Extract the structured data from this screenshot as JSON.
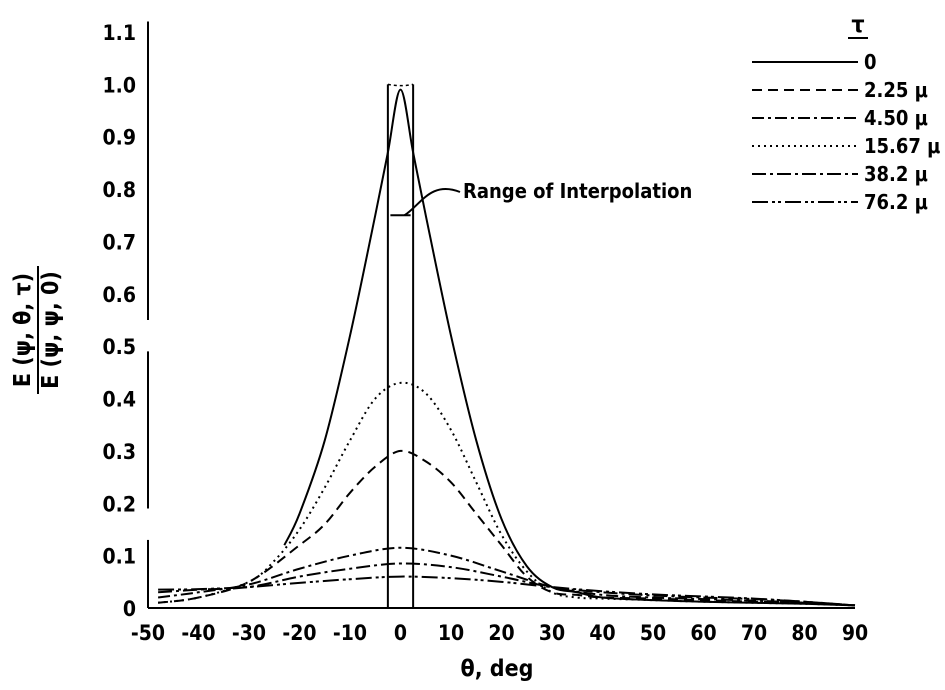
{
  "chart_data": {
    "type": "line",
    "xlabel": "θ, deg",
    "ylabel_numerator": "E (ψ,  θ,  τ)",
    "ylabel_denominator": "E (ψ,  ψ,  0)",
    "xlim": [
      -50,
      90
    ],
    "ylim": [
      0,
      1.1
    ],
    "x_ticks": [
      "-50",
      "-40",
      "-30",
      "-20",
      "-10",
      "0",
      "10",
      "20",
      "30",
      "40",
      "50",
      "60",
      "70",
      "80",
      "90"
    ],
    "y_ticks": [
      "0",
      "0.1",
      "0.2",
      "0.3",
      "0.4",
      "0.5",
      "0.6",
      "0.7",
      "0.8",
      "0.9",
      "1.0",
      "1.1"
    ],
    "legend_title": "τ",
    "legend_position": "top-right",
    "annotation": {
      "text": "Range of Interpolation",
      "x": 0,
      "y": 0.75
    },
    "interpolation_range": [
      -2.5,
      2.5
    ],
    "series": [
      {
        "name": "0",
        "dash": "",
        "x": [
          -23,
          -20,
          -15,
          -10,
          -5,
          -2.5,
          0,
          2.5,
          5,
          10,
          15,
          20,
          25,
          30,
          35,
          40,
          50,
          60,
          70,
          80,
          90
        ],
        "y": [
          0.12,
          0.18,
          0.32,
          0.52,
          0.75,
          0.87,
          0.99,
          0.87,
          0.75,
          0.52,
          0.32,
          0.17,
          0.08,
          0.04,
          0.03,
          0.02,
          0.015,
          0.012,
          0.01,
          0.008,
          0.005
        ]
      },
      {
        "name": "2.25 μ",
        "dash": "10 6",
        "x": [
          -48,
          -40,
          -30,
          -20,
          -15,
          -10,
          -5,
          0,
          5,
          10,
          15,
          20,
          25,
          30,
          35,
          40,
          50,
          60,
          70,
          80,
          90
        ],
        "y": [
          0.01,
          0.02,
          0.05,
          0.12,
          0.16,
          0.22,
          0.27,
          0.3,
          0.28,
          0.24,
          0.18,
          0.12,
          0.06,
          0.03,
          0.025,
          0.02,
          0.018,
          0.015,
          0.012,
          0.01,
          0.005
        ]
      },
      {
        "name": "4.50 μ",
        "dash": "12 4 3 4",
        "x": [
          -48,
          -40,
          -30,
          -20,
          -10,
          0,
          10,
          20,
          30,
          40,
          50,
          60,
          70,
          80,
          90
        ],
        "y": [
          0.02,
          0.03,
          0.045,
          0.075,
          0.1,
          0.115,
          0.1,
          0.07,
          0.04,
          0.025,
          0.02,
          0.017,
          0.014,
          0.01,
          0.005
        ]
      },
      {
        "name": "15.67 μ",
        "dash": "2 4",
        "x": [
          -48,
          -40,
          -30,
          -25,
          -20,
          -15,
          -10,
          -5,
          0,
          5,
          10,
          15,
          20,
          25,
          30,
          35,
          40,
          50,
          60,
          70,
          80,
          90
        ],
        "y": [
          0.01,
          0.02,
          0.05,
          0.09,
          0.15,
          0.23,
          0.32,
          0.4,
          0.43,
          0.41,
          0.34,
          0.24,
          0.14,
          0.07,
          0.03,
          0.02,
          0.018,
          0.015,
          0.012,
          0.01,
          0.008,
          0.005
        ]
      },
      {
        "name": "38.2 μ",
        "dash": "14 4 3 4",
        "x": [
          -48,
          -40,
          -30,
          -20,
          -10,
          0,
          10,
          20,
          30,
          40,
          50,
          60,
          70,
          80,
          90
        ],
        "y": [
          0.03,
          0.035,
          0.04,
          0.06,
          0.075,
          0.085,
          0.078,
          0.06,
          0.04,
          0.03,
          0.024,
          0.02,
          0.017,
          0.012,
          0.005
        ]
      },
      {
        "name": "76.2 μ",
        "dash": "16 4 3 3 3 4",
        "x": [
          -48,
          -40,
          -30,
          -20,
          -10,
          0,
          10,
          20,
          30,
          40,
          50,
          60,
          70,
          80,
          90
        ],
        "y": [
          0.035,
          0.036,
          0.04,
          0.048,
          0.055,
          0.06,
          0.057,
          0.05,
          0.04,
          0.032,
          0.026,
          0.022,
          0.018,
          0.012,
          0.005
        ]
      }
    ]
  }
}
